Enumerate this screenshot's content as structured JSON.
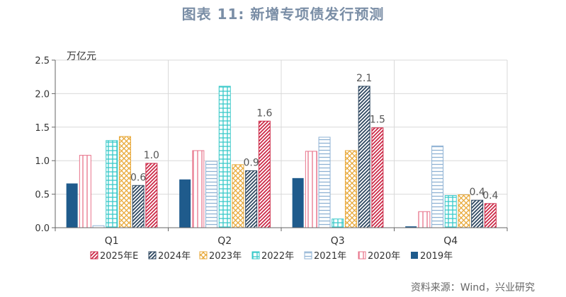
{
  "title": "图表 11: 新增专项债发行预测",
  "source": "资料来源：Wind，兴业研究",
  "chart_data": {
    "type": "bar",
    "unit_label": "万亿元",
    "categories": [
      "Q1",
      "Q2",
      "Q3",
      "Q4"
    ],
    "ylim": [
      0,
      2.5
    ],
    "yticks": [
      "0.0",
      "0.5",
      "1.0",
      "1.5",
      "2.0",
      "2.5"
    ],
    "grid": true,
    "legend_position": "bottom",
    "series": [
      {
        "name": "2019年",
        "values": [
          0.66,
          0.72,
          0.74,
          0.02
        ],
        "color": "#1f5b8c",
        "pattern": "solid"
      },
      {
        "name": "2020年",
        "values": [
          1.08,
          1.15,
          1.14,
          0.24
        ],
        "color": "#e8738a",
        "pattern": "vlines"
      },
      {
        "name": "2021年",
        "values": [
          0.03,
          0.99,
          1.35,
          1.22
        ],
        "color": "#8fb2d4",
        "pattern": "hlines"
      },
      {
        "name": "2022年",
        "values": [
          1.3,
          2.11,
          0.13,
          0.48
        ],
        "color": "#38c9c9",
        "pattern": "grid"
      },
      {
        "name": "2023年",
        "values": [
          1.36,
          0.94,
          1.15,
          0.49
        ],
        "color": "#e8a838",
        "pattern": "crosshatch"
      },
      {
        "name": "2024年",
        "values": [
          0.63,
          0.85,
          2.11,
          0.41
        ],
        "color": "#2e4760",
        "pattern": "diag"
      },
      {
        "name": "2025年E",
        "values": [
          0.96,
          1.59,
          1.49,
          0.36
        ],
        "color": "#cc2a48",
        "pattern": "diag"
      }
    ],
    "data_labels": [
      {
        "text": "0.6",
        "category": 0,
        "series": 5
      },
      {
        "text": "1.0",
        "category": 0,
        "series": 6
      },
      {
        "text": "0.9",
        "category": 1,
        "series": 5
      },
      {
        "text": "1.6",
        "category": 1,
        "series": 6
      },
      {
        "text": "2.1",
        "category": 2,
        "series": 5
      },
      {
        "text": "1.5",
        "category": 2,
        "series": 6
      },
      {
        "text": "0.4",
        "category": 3,
        "series": 5
      },
      {
        "text": "0.4",
        "category": 3,
        "series": 6
      }
    ],
    "legend_order": [
      6,
      5,
      4,
      3,
      2,
      1,
      0
    ]
  }
}
